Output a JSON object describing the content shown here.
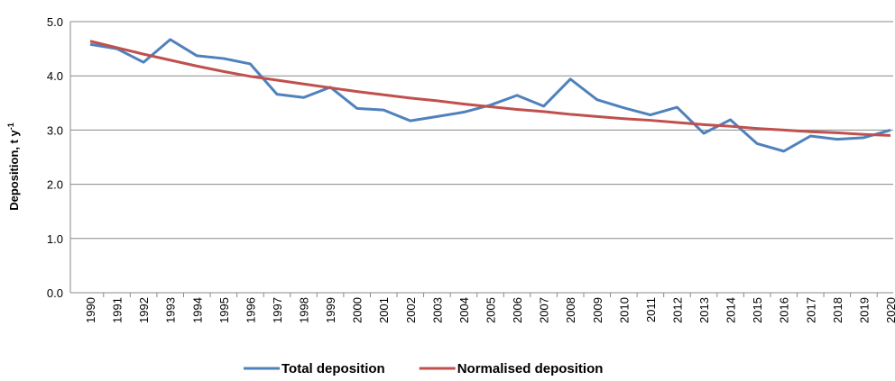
{
  "chart_data": {
    "type": "line",
    "y_label": {
      "text": "Deposition, t y",
      "superscript": "-1"
    },
    "categories": [
      "1990",
      "1991",
      "1992",
      "1993",
      "1994",
      "1995",
      "1996",
      "1997",
      "1998",
      "1999",
      "2000",
      "2001",
      "2002",
      "2003",
      "2004",
      "2005",
      "2006",
      "2007",
      "2008",
      "2009",
      "2010",
      "2011",
      "2012",
      "2013",
      "2014",
      "2015",
      "2016",
      "2017",
      "2018",
      "2019",
      "2020"
    ],
    "series": [
      {
        "name": "Total deposition",
        "color": "#4f81bd",
        "values": [
          4.58,
          4.5,
          4.25,
          4.67,
          4.37,
          4.32,
          4.22,
          3.66,
          3.6,
          3.79,
          3.4,
          3.37,
          3.17,
          3.25,
          3.33,
          3.46,
          3.64,
          3.44,
          3.94,
          3.56,
          3.41,
          3.28,
          3.42,
          2.94,
          3.19,
          2.75,
          2.61,
          2.89,
          2.83,
          2.86,
          3.0
        ]
      },
      {
        "name": "Normalised deposition",
        "color": "#c0504d",
        "values": [
          4.64,
          4.52,
          4.4,
          4.29,
          4.18,
          4.08,
          3.99,
          3.92,
          3.85,
          3.78,
          3.71,
          3.65,
          3.59,
          3.54,
          3.48,
          3.43,
          3.38,
          3.34,
          3.29,
          3.25,
          3.21,
          3.18,
          3.14,
          3.1,
          3.07,
          3.03,
          3.0,
          2.97,
          2.95,
          2.92,
          2.9
        ]
      }
    ],
    "ylim": [
      0,
      5
    ],
    "yticks": [
      {
        "value": 0,
        "label": "0.0"
      },
      {
        "value": 1,
        "label": "1.0"
      },
      {
        "value": 2,
        "label": "2.0"
      },
      {
        "value": 3,
        "label": "3.0"
      },
      {
        "value": 4,
        "label": "4.0"
      },
      {
        "value": 5,
        "label": "5.0"
      }
    ],
    "grid": true,
    "legend": "bottom"
  }
}
